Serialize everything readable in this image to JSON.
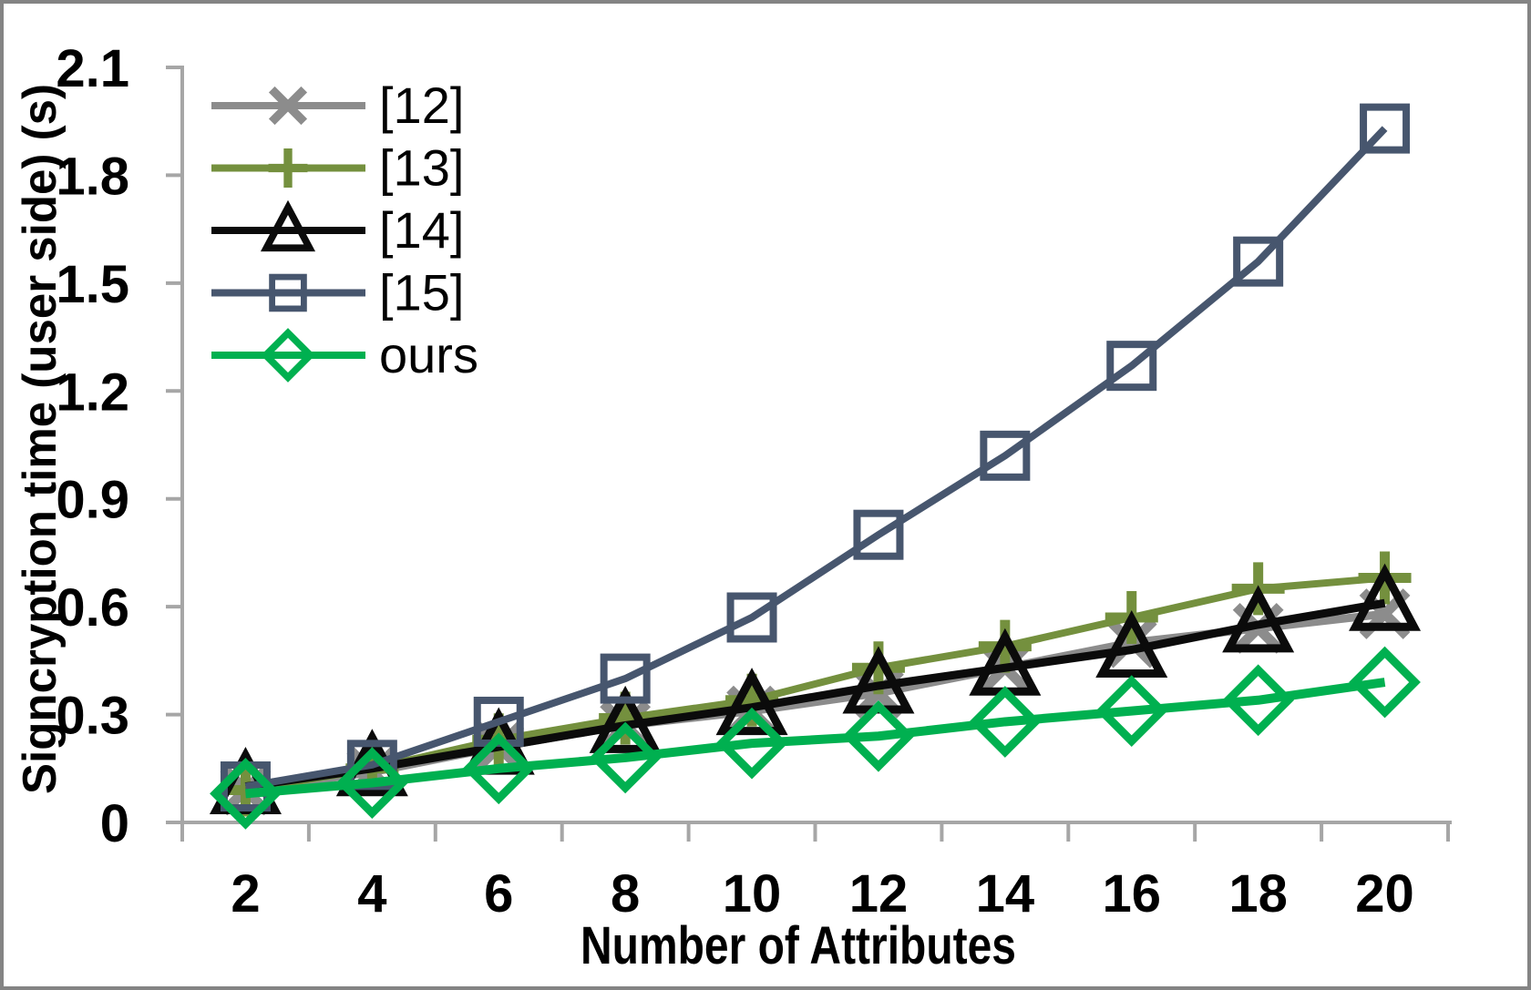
{
  "chart_data": {
    "type": "line",
    "title": "",
    "xlabel": "Number of Attributes",
    "ylabel": "Signcryption time (user side) (s)",
    "categories": [
      "2",
      "4",
      "6",
      "8",
      "10",
      "12",
      "14",
      "16",
      "18",
      "20"
    ],
    "y_ticks": [
      "0",
      "0.3",
      "0.6",
      "0.9",
      "1.2",
      "1.5",
      "1.8",
      "2.1"
    ],
    "y_tick_step": 0.3,
    "ylim": [
      0,
      2.1
    ],
    "grid": false,
    "legend_position": "top-left-inside",
    "axis_color": "#A6A6A6",
    "text_color": "#000000",
    "series": [
      {
        "name": "[12]",
        "color": "#8C8C8C",
        "marker": "x",
        "values": [
          0.09,
          0.14,
          0.21,
          0.27,
          0.31,
          0.36,
          0.43,
          0.5,
          0.54,
          0.58
        ]
      },
      {
        "name": "[13]",
        "color": "#74903E",
        "marker": "plus",
        "values": [
          0.09,
          0.15,
          0.23,
          0.29,
          0.34,
          0.43,
          0.49,
          0.57,
          0.65,
          0.68
        ]
      },
      {
        "name": "[14]",
        "color": "#0B0B0B",
        "marker": "triangle",
        "values": [
          0.1,
          0.15,
          0.21,
          0.27,
          0.32,
          0.38,
          0.43,
          0.48,
          0.55,
          0.61
        ]
      },
      {
        "name": "[15]",
        "color": "#47566E",
        "marker": "square",
        "values": [
          0.1,
          0.16,
          0.28,
          0.4,
          0.57,
          0.8,
          1.02,
          1.27,
          1.56,
          1.93
        ]
      },
      {
        "name": "ours",
        "color": "#00B050",
        "marker": "diamond",
        "values": [
          0.08,
          0.11,
          0.15,
          0.18,
          0.22,
          0.24,
          0.28,
          0.31,
          0.34,
          0.39
        ]
      }
    ]
  }
}
